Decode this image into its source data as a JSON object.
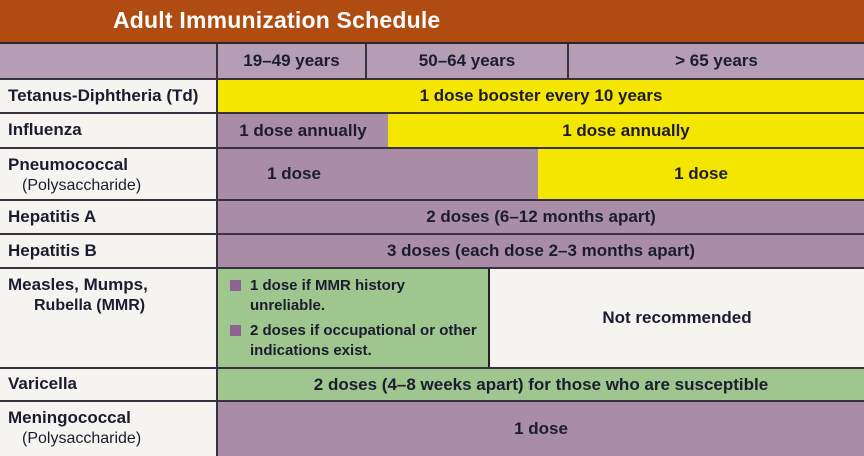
{
  "title": "Adult Immunization Schedule",
  "colors": {
    "title_bar": "#b04b11",
    "header_cell": "#b59db3",
    "band_purple": "#a98da7",
    "band_yellow": "#f5e600",
    "band_green": "#9fc68e",
    "bullet_square": "#8d6394",
    "text_dark": "#1c1c30"
  },
  "header": {
    "age_groups": [
      "19–49 years",
      "50–64 years",
      "> 65 years"
    ]
  },
  "rows": [
    {
      "vaccine": "Tetanus-Diphtheria (Td)",
      "segments": [
        {
          "text": "1 dose booster every 10 years",
          "style": "yellow"
        }
      ]
    },
    {
      "vaccine": "Influenza",
      "segments": [
        {
          "text": "1 dose annually",
          "style": "purple"
        },
        {
          "text": "1 dose annually",
          "style": "yellow"
        }
      ]
    },
    {
      "vaccine": "Pneumococcal",
      "vaccine_line2": "(Polysaccharide)",
      "segments": [
        {
          "text": "1 dose",
          "style": "purple"
        },
        {
          "text": "1 dose",
          "style": "yellow"
        }
      ]
    },
    {
      "vaccine": "Hepatitis A",
      "segments": [
        {
          "text": "2 doses (6–12 months apart)",
          "style": "purple"
        }
      ]
    },
    {
      "vaccine": "Hepatitis B",
      "segments": [
        {
          "text": "3 doses (each dose 2–3 months apart)",
          "style": "purple"
        }
      ]
    },
    {
      "vaccine": "Measles, Mumps,",
      "vaccine_line2": "Rubella (MMR)",
      "segments": [
        {
          "style": "green",
          "bullets": [
            "1 dose if MMR history unreliable.",
            "2 doses if occupational or other indications exist."
          ]
        },
        {
          "text": "Not recommended",
          "style": "white"
        }
      ]
    },
    {
      "vaccine": "Varicella",
      "segments": [
        {
          "text": "2 doses (4–8 weeks apart) for those who are susceptible",
          "style": "green"
        }
      ]
    },
    {
      "vaccine": "Meningococcal",
      "vaccine_line2": "(Polysaccharide)",
      "segments": [
        {
          "text": "1 dose",
          "style": "purple"
        }
      ]
    }
  ]
}
